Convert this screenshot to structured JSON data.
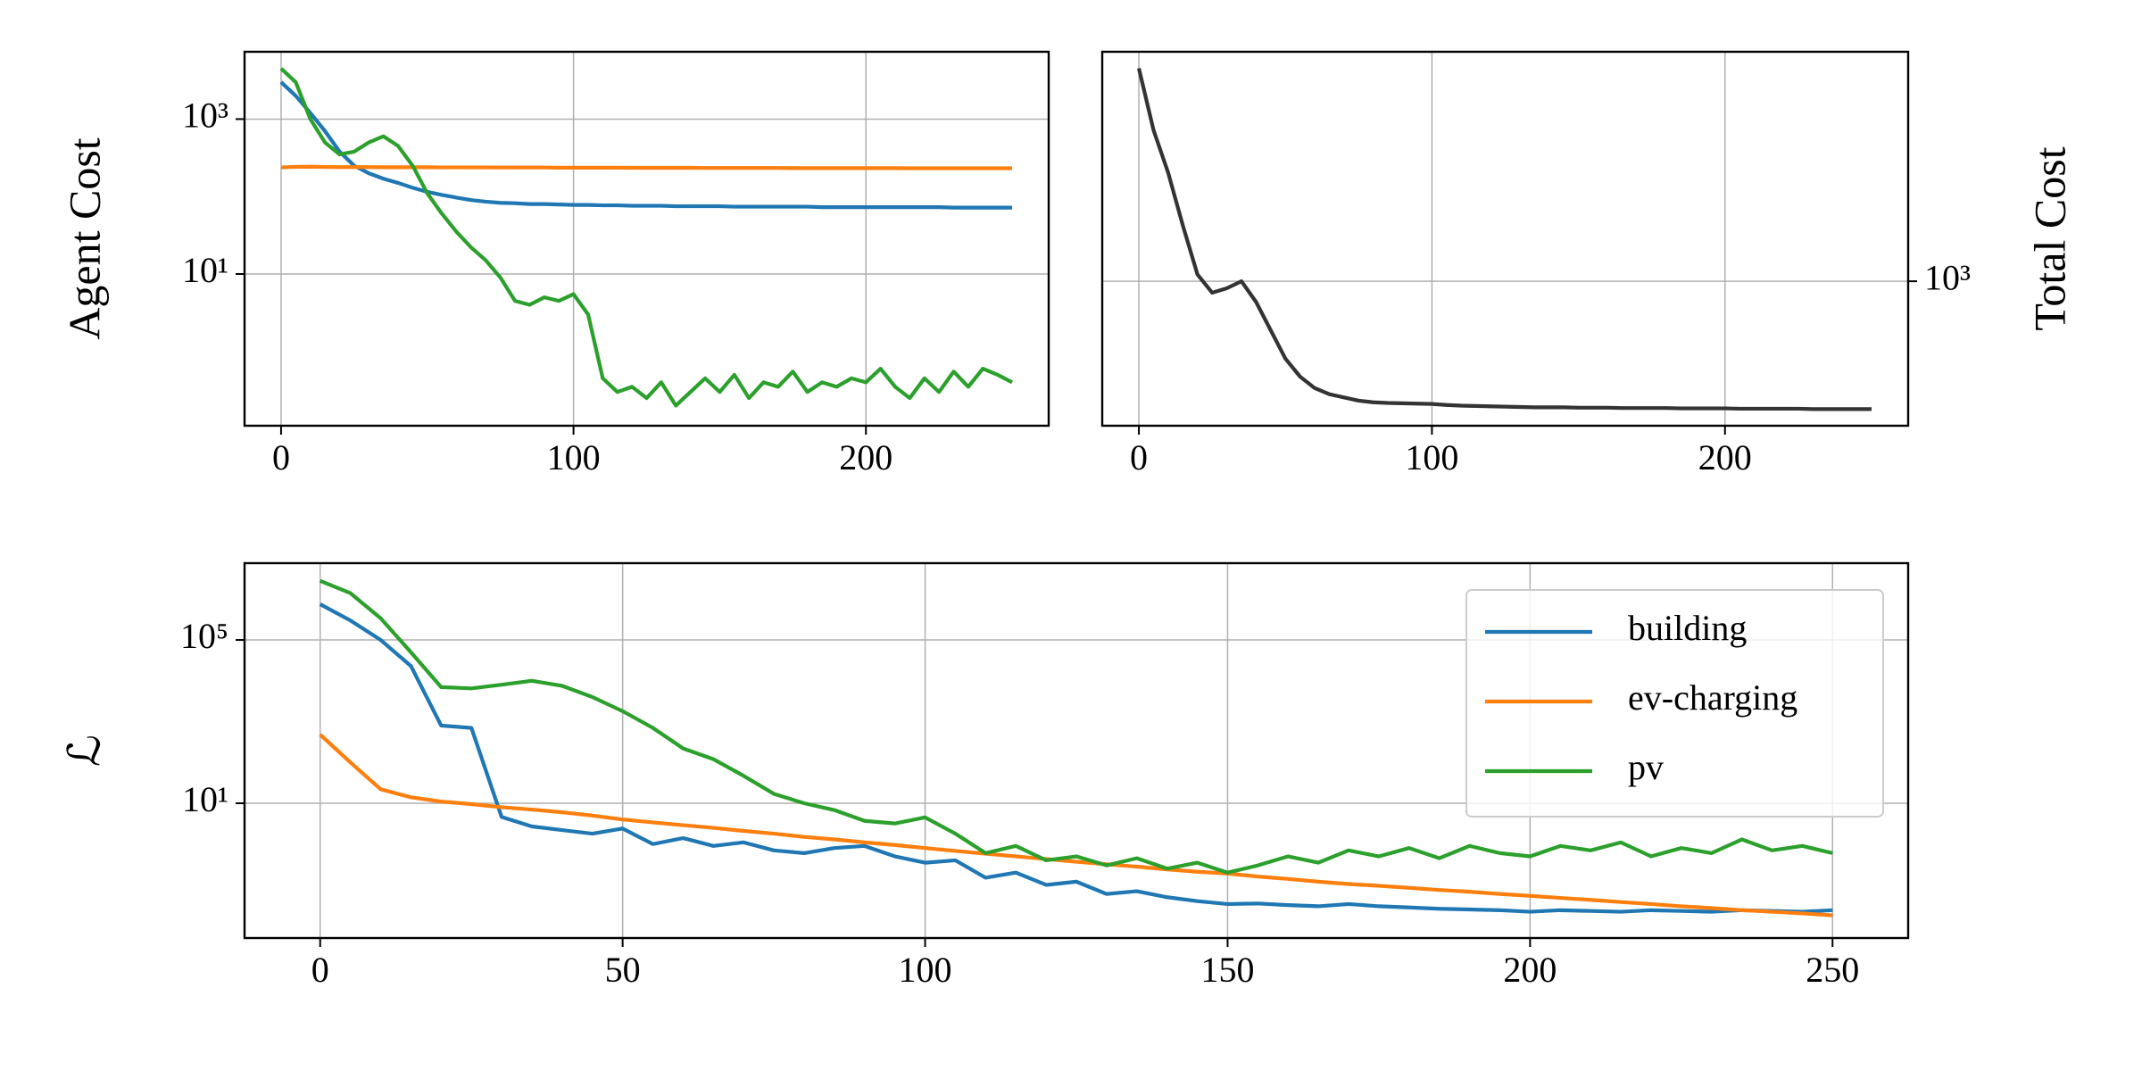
{
  "chart_data": [
    {
      "type": "line",
      "ylabel": "Agent Cost",
      "yscale": "log",
      "grid": true,
      "yaxis_side": "left",
      "xlim": [
        -12.5,
        262.5
      ],
      "ylim": [
        0.11,
        7400
      ],
      "xticks": [
        0,
        100,
        200
      ],
      "yticks": [
        {
          "value": 10,
          "label": "10¹"
        },
        {
          "value": 1000,
          "label": "10³"
        }
      ],
      "x": [
        0,
        5,
        10,
        15,
        20,
        25,
        30,
        35,
        40,
        45,
        50,
        55,
        60,
        65,
        70,
        75,
        80,
        85,
        90,
        95,
        100,
        105,
        110,
        115,
        120,
        125,
        130,
        135,
        140,
        145,
        150,
        155,
        160,
        165,
        170,
        175,
        180,
        185,
        190,
        195,
        200,
        205,
        210,
        215,
        220,
        225,
        230,
        235,
        240,
        245,
        250
      ],
      "series": [
        {
          "color": "#1f77b4",
          "values": [
            3000,
            2000,
            1200,
            700,
            380,
            250,
            200,
            170,
            150,
            130,
            115,
            105,
            97,
            90,
            86,
            83,
            82,
            80,
            80,
            79,
            78,
            78,
            77,
            77,
            76,
            76,
            76,
            75,
            75,
            75,
            75,
            74,
            74,
            74,
            74,
            74,
            74,
            73,
            73,
            73,
            73,
            73,
            73,
            73,
            73,
            73,
            72,
            72,
            72,
            72,
            72
          ]
        },
        {
          "color": "#ff7f0e",
          "values": [
            238,
            242,
            243,
            241,
            240,
            240,
            240,
            239,
            239,
            239,
            239,
            238,
            238,
            238,
            238,
            237,
            237,
            237,
            237,
            236,
            236,
            236,
            236,
            236,
            235,
            235,
            235,
            235,
            235,
            234,
            234,
            234,
            234,
            234,
            234,
            233,
            233,
            233,
            233,
            233,
            233,
            233,
            233,
            232,
            232,
            232,
            232,
            232,
            232,
            232,
            232
          ]
        },
        {
          "color": "#2ca02c",
          "values": [
            4500,
            3000,
            1000,
            500,
            350,
            380,
            500,
            600,
            450,
            250,
            110,
            60,
            35,
            22,
            15,
            9,
            4.5,
            4,
            5,
            4.5,
            5.5,
            3,
            0.45,
            0.3,
            0.35,
            0.25,
            0.4,
            0.2,
            0.3,
            0.45,
            0.3,
            0.5,
            0.25,
            0.4,
            0.35,
            0.55,
            0.3,
            0.4,
            0.35,
            0.45,
            0.4,
            0.6,
            0.35,
            0.25,
            0.45,
            0.3,
            0.55,
            0.35,
            0.6,
            0.5,
            0.4
          ]
        }
      ]
    },
    {
      "type": "line",
      "ylabel": "Total Cost",
      "yscale": "log",
      "grid": true,
      "yaxis_side": "right",
      "xlim": [
        -12.5,
        262.5
      ],
      "ylim": [
        350,
        5300
      ],
      "xticks": [
        0,
        100,
        200
      ],
      "yticks": [
        {
          "value": 1000,
          "label": "10³"
        }
      ],
      "x": [
        0,
        5,
        10,
        15,
        20,
        25,
        30,
        35,
        40,
        45,
        50,
        55,
        60,
        65,
        70,
        75,
        80,
        85,
        90,
        95,
        100,
        105,
        110,
        115,
        120,
        125,
        130,
        135,
        140,
        145,
        150,
        155,
        160,
        165,
        170,
        175,
        180,
        185,
        190,
        195,
        200,
        205,
        210,
        215,
        220,
        225,
        230,
        235,
        240,
        245,
        250
      ],
      "series": [
        {
          "color": "#333333",
          "values": [
            4700,
            3000,
            2200,
            1500,
            1050,
            920,
            950,
            1000,
            860,
            700,
            570,
            500,
            460,
            440,
            430,
            420,
            415,
            413,
            412,
            411,
            410,
            407,
            405,
            404,
            403,
            402,
            401,
            400,
            400,
            400,
            399,
            399,
            399,
            398,
            398,
            398,
            398,
            397,
            397,
            397,
            397,
            396,
            396,
            396,
            396,
            396,
            395,
            395,
            395,
            395,
            395
          ]
        }
      ]
    },
    {
      "type": "line",
      "ylabel": "ℒ",
      "yscale": "log",
      "grid": true,
      "yaxis_side": "left",
      "legend": "upper right",
      "xlim": [
        -12.5,
        262.5
      ],
      "ylim": [
        0.005,
        7600000
      ],
      "xticks": [
        0,
        50,
        100,
        150,
        200,
        250
      ],
      "yticks": [
        {
          "value": 10,
          "label": "10¹"
        },
        {
          "value": 100000,
          "label": "10⁵"
        }
      ],
      "x": [
        0,
        5,
        10,
        15,
        20,
        25,
        30,
        35,
        40,
        45,
        50,
        55,
        60,
        65,
        70,
        75,
        80,
        85,
        90,
        95,
        100,
        105,
        110,
        115,
        120,
        125,
        130,
        135,
        140,
        145,
        150,
        155,
        160,
        165,
        170,
        175,
        180,
        185,
        190,
        195,
        200,
        205,
        210,
        215,
        220,
        225,
        230,
        235,
        240,
        245,
        250
      ],
      "series": [
        {
          "name": "building",
          "color": "#1f77b4",
          "values": [
            750000,
            300000,
            100000,
            23000,
            800,
            700,
            4.6,
            2.7,
            2.2,
            1.8,
            2.4,
            1.0,
            1.4,
            0.9,
            1.1,
            0.7,
            0.6,
            0.8,
            0.9,
            0.5,
            0.35,
            0.4,
            0.15,
            0.2,
            0.1,
            0.12,
            0.06,
            0.07,
            0.05,
            0.04,
            0.034,
            0.035,
            0.032,
            0.03,
            0.034,
            0.03,
            0.028,
            0.026,
            0.025,
            0.024,
            0.022,
            0.024,
            0.023,
            0.022,
            0.024,
            0.023,
            0.022,
            0.024,
            0.023,
            0.022,
            0.024
          ]
        },
        {
          "name": "ev-charging",
          "color": "#ff7f0e",
          "values": [
            480,
            100,
            22,
            14,
            11,
            9.5,
            8,
            7,
            6,
            5,
            4,
            3.4,
            2.9,
            2.5,
            2.1,
            1.8,
            1.5,
            1.3,
            1.1,
            0.95,
            0.8,
            0.68,
            0.58,
            0.5,
            0.43,
            0.37,
            0.32,
            0.28,
            0.24,
            0.21,
            0.19,
            0.16,
            0.14,
            0.12,
            0.105,
            0.095,
            0.085,
            0.075,
            0.068,
            0.06,
            0.054,
            0.048,
            0.043,
            0.038,
            0.034,
            0.03,
            0.027,
            0.024,
            0.022,
            0.02,
            0.018
          ]
        },
        {
          "name": "pv",
          "color": "#2ca02c",
          "values": [
            2800000,
            1400000,
            340000,
            50000,
            7000,
            6500,
            8000,
            10000,
            7500,
            4000,
            1800,
            700,
            220,
            120,
            47,
            17,
            10,
            6.8,
            3.7,
            3.2,
            4.5,
            1.8,
            0.6,
            0.9,
            0.4,
            0.5,
            0.3,
            0.45,
            0.25,
            0.35,
            0.2,
            0.3,
            0.5,
            0.35,
            0.7,
            0.5,
            0.8,
            0.45,
            0.9,
            0.6,
            0.5,
            0.9,
            0.7,
            1.1,
            0.5,
            0.8,
            0.6,
            1.3,
            0.7,
            0.9,
            0.6
          ]
        }
      ]
    }
  ]
}
